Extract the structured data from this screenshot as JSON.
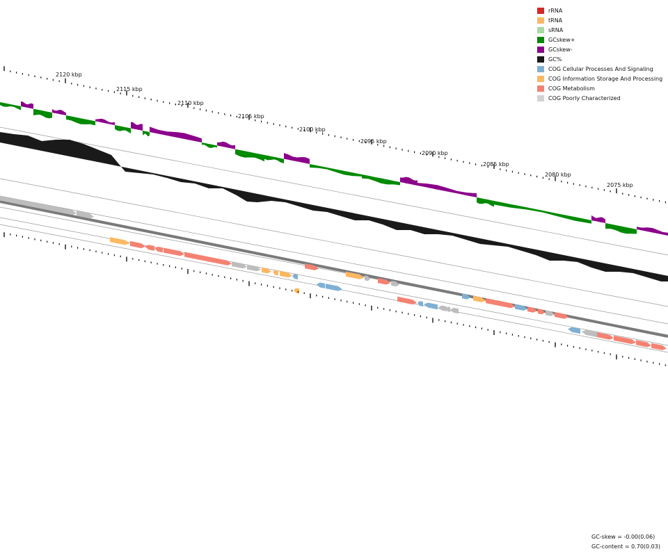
{
  "legend": {
    "items": [
      {
        "label": "rRNA",
        "color": "#d62728"
      },
      {
        "label": "tRNA",
        "color": "#fdb863"
      },
      {
        "label": "sRNA",
        "color": "#a6dba0"
      },
      {
        "label": "GCskew+",
        "color": "#008a00"
      },
      {
        "label": "GCskew-",
        "color": "#8b008b"
      },
      {
        "label": "GC%",
        "color": "#1a1a1a"
      },
      {
        "label": "COG Cellular Processes And Signaling",
        "color": "#7fb0d4"
      },
      {
        "label": "COG Information Storage And Processing",
        "color": "#fdb863"
      },
      {
        "label": "COG Metabolism",
        "color": "#f48272"
      },
      {
        "label": "COG Poorly Characterized",
        "color": "#d3d3d3"
      }
    ]
  },
  "ticks": {
    "labels": [
      "2120 kbp",
      "2115 kbp",
      "2110 kbp",
      "2105 kbp",
      "2100 kbp",
      "2095 kbp",
      "2090 kbp",
      "2085 kbp",
      "2080 kbp",
      "2075 kbp"
    ]
  },
  "stats": {
    "gc_skew": "GC-skew = -0.00(0.06)",
    "gc_content": "GC-content = 0.70(0.03)"
  },
  "colors": {
    "skew_pos": "#008a00",
    "skew_neg": "#8b008b",
    "gc": "#1a1a1a",
    "backbone": "#7a7a7a",
    "guide": "#999999"
  },
  "features": {
    "forward": [
      {
        "cat": "poor"
      },
      {
        "cat": "poor"
      }
    ],
    "track1": [
      {
        "cat": "info"
      },
      {
        "cat": "met"
      },
      {
        "cat": "met"
      },
      {
        "cat": "met"
      },
      {
        "cat": "met"
      },
      {
        "cat": "met"
      },
      {
        "cat": "poor"
      },
      {
        "cat": "poor"
      },
      {
        "cat": "info"
      },
      {
        "cat": "info"
      },
      {
        "cat": "info"
      },
      {
        "cat": "cell"
      },
      {
        "cat": "met"
      },
      {
        "cat": "info"
      },
      {
        "cat": "poor"
      },
      {
        "cat": "met"
      },
      {
        "cat": "poor"
      },
      {
        "cat": "cell"
      },
      {
        "cat": "info"
      },
      {
        "cat": "met"
      },
      {
        "cat": "cell"
      },
      {
        "cat": "met"
      },
      {
        "cat": "met"
      },
      {
        "cat": "poor"
      },
      {
        "cat": "met"
      }
    ],
    "track2": [
      {
        "cat": "info"
      },
      {
        "cat": "cell"
      },
      {
        "cat": "cell"
      },
      {
        "cat": "met"
      },
      {
        "cat": "cell"
      },
      {
        "cat": "cell"
      },
      {
        "cat": "poor"
      },
      {
        "cat": "poor"
      },
      {
        "cat": "poor"
      },
      {
        "cat": "cell"
      },
      {
        "cat": "poor"
      },
      {
        "cat": "met"
      },
      {
        "cat": "met"
      },
      {
        "cat": "met"
      },
      {
        "cat": "met"
      }
    ]
  }
}
